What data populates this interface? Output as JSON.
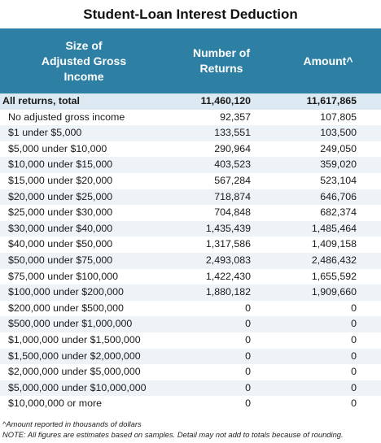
{
  "title": "Student-Loan Interest Deduction",
  "header": {
    "size_lines": [
      "Size of",
      "Adjusted Gross",
      "Income"
    ],
    "returns_lines": [
      "Number of",
      "Returns"
    ],
    "amount": "Amount^"
  },
  "rows": [
    {
      "label": "All returns, total",
      "returns": "11,460,120",
      "amount": "11,617,865",
      "total": true
    },
    {
      "label": "No adjusted gross income",
      "returns": "92,357",
      "amount": "107,805"
    },
    {
      "label": "$1 under $5,000",
      "returns": "133,551",
      "amount": "103,500"
    },
    {
      "label": "$5,000 under $10,000",
      "returns": "290,964",
      "amount": "249,050"
    },
    {
      "label": "$10,000 under $15,000",
      "returns": "403,523",
      "amount": "359,020"
    },
    {
      "label": "$15,000 under $20,000",
      "returns": "567,284",
      "amount": "523,104"
    },
    {
      "label": "$20,000 under $25,000",
      "returns": "718,874",
      "amount": "646,706"
    },
    {
      "label": "$25,000 under $30,000",
      "returns": "704,848",
      "amount": "682,374"
    },
    {
      "label": "$30,000 under $40,000",
      "returns": "1,435,439",
      "amount": "1,485,464"
    },
    {
      "label": "$40,000 under $50,000",
      "returns": "1,317,586",
      "amount": "1,409,158"
    },
    {
      "label": "$50,000 under $75,000",
      "returns": "2,493,083",
      "amount": "2,486,432"
    },
    {
      "label": "$75,000 under $100,000",
      "returns": "1,422,430",
      "amount": "1,655,592"
    },
    {
      "label": "$100,000 under $200,000",
      "returns": "1,880,182",
      "amount": "1,909,660"
    },
    {
      "label": "$200,000 under $500,000",
      "returns": "0",
      "amount": "0"
    },
    {
      "label": "$500,000 under $1,000,000",
      "returns": "0",
      "amount": "0"
    },
    {
      "label": "$1,000,000 under $1,500,000",
      "returns": "0",
      "amount": "0"
    },
    {
      "label": "$1,500,000 under $2,000,000",
      "returns": "0",
      "amount": "0"
    },
    {
      "label": "$2,000,000 under $5,000,000",
      "returns": "0",
      "amount": "0"
    },
    {
      "label": "$5,000,000 under $10,000,000",
      "returns": "0",
      "amount": "0"
    },
    {
      "label": "$10,000,000 or more",
      "returns": "0",
      "amount": "0"
    }
  ],
  "notes": {
    "amount_note": "^Amount reported in thousands of dollars",
    "general_note": "NOTE: All figures are estimates based on samples. Detail may not add to totals because of rounding."
  },
  "colors": {
    "header_bg": "#2e7fa4",
    "total_row_bg": "#dce9f2",
    "alt_row_bg": "#eef3f8"
  }
}
